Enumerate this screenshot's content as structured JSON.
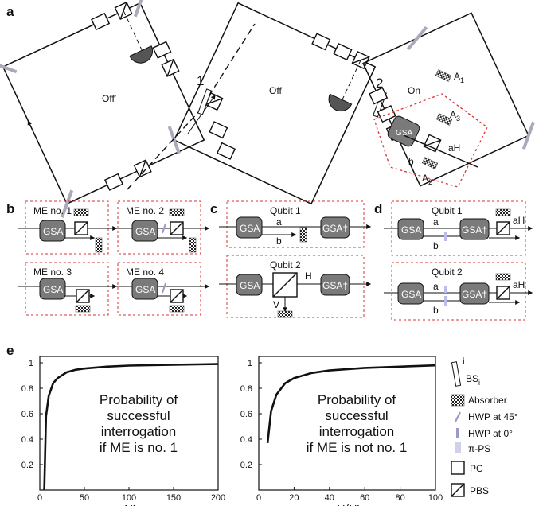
{
  "panels": {
    "a": "a",
    "b": "b",
    "c": "c",
    "d": "d",
    "e": "e"
  },
  "panel_a": {
    "beamsplitter_1": "1",
    "beamsplitter_2": "2",
    "off_prime": "Off′",
    "off": "Off",
    "on": "On",
    "gsa": "GSA",
    "a1": "A",
    "a1_sub": "1",
    "a2": "A",
    "a2_sub": "2",
    "a3": "A",
    "a3_sub": "3",
    "ah": "aH",
    "b": "b"
  },
  "panel_b": {
    "me1": "ME no. 1",
    "me2": "ME no. 2",
    "me3": "ME no. 3",
    "me4": "ME no. 4",
    "gsa": "GSA"
  },
  "panel_c": {
    "qubit1": "Qubit 1",
    "qubit2": "Qubit 2",
    "gsa": "GSA",
    "gsa_dag": "GSA†",
    "a": "a",
    "b": "b",
    "h": "H",
    "v": "V"
  },
  "panel_d": {
    "qubit1": "Qubit 1",
    "qubit2": "Qubit 2",
    "gsa": "GSA",
    "gsa_dag": "GSA†",
    "a": "a",
    "b": "b",
    "ah": "aH"
  },
  "legend": {
    "bs": "BS",
    "bs_sub": "i",
    "bs_sup": "i",
    "absorber": "Absorber",
    "hwp45": "HWP at 45°",
    "hwp0": "HWP at 0°",
    "pips": "π-PS",
    "pc": "PC",
    "pbs": "PBS"
  },
  "chart_data": [
    {
      "type": "line",
      "x": [
        5,
        7,
        10,
        15,
        20,
        30,
        40,
        50,
        75,
        100,
        150,
        200
      ],
      "y": [
        0.0,
        0.58,
        0.74,
        0.84,
        0.88,
        0.925,
        0.945,
        0.955,
        0.97,
        0.978,
        0.985,
        0.99
      ],
      "xlim": [
        0,
        200
      ],
      "ylim": [
        0,
        1.05
      ],
      "xticks": [
        0,
        50,
        100,
        150,
        200
      ],
      "yticks": [
        0.2,
        0.4,
        0.6,
        0.8,
        1
      ],
      "xlabel": "N′",
      "annotation": [
        "Probability of",
        "successful",
        "interrogation",
        "if ME is no. 1"
      ]
    },
    {
      "type": "line",
      "x": [
        5,
        7,
        10,
        15,
        20,
        30,
        40,
        60,
        80,
        100
      ],
      "y": [
        0.37,
        0.62,
        0.75,
        0.84,
        0.88,
        0.92,
        0.94,
        0.96,
        0.97,
        0.98
      ],
      "xlim": [
        0,
        100
      ],
      "ylim": [
        0,
        1.05
      ],
      "xticks": [
        0,
        20,
        40,
        60,
        80,
        100
      ],
      "yticks": [
        0.2,
        0.4,
        0.6,
        0.8,
        1
      ],
      "xlabel": "N/N′",
      "annotation": [
        "Probability of",
        "successful",
        "interrogation",
        "if ME is not no. 1"
      ]
    }
  ]
}
